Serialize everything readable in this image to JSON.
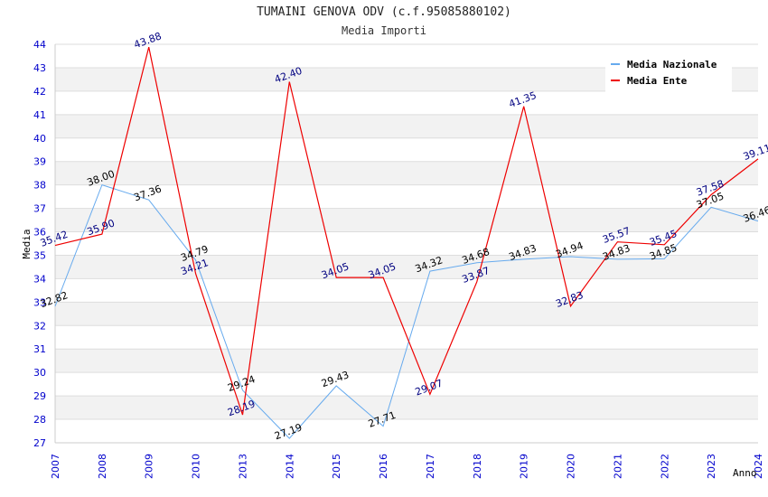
{
  "chart_data": {
    "type": "line",
    "title": "TUMAINI GENOVA ODV (c.f.95085880102)",
    "subtitle": "Media Importi",
    "xlabel": "Anno",
    "ylabel": "Media",
    "ylim": [
      27,
      44
    ],
    "yticks": [
      "27",
      "28",
      "29",
      "30",
      "31",
      "32",
      "33",
      "34",
      "35",
      "36",
      "37",
      "38",
      "39",
      "40",
      "41",
      "42",
      "43",
      "44"
    ],
    "categories": [
      "2007",
      "2008",
      "2009",
      "2010",
      "2013",
      "2014",
      "2015",
      "2016",
      "2017",
      "2018",
      "2019",
      "2020",
      "2021",
      "2022",
      "2023",
      "2024"
    ],
    "series": [
      {
        "name": "Media Nazionale",
        "color": "#66aaee",
        "label_color": "#000000",
        "values": [
          32.82,
          38.0,
          37.36,
          34.79,
          29.24,
          27.19,
          29.43,
          27.71,
          34.32,
          34.68,
          34.83,
          34.94,
          34.83,
          34.85,
          37.05,
          36.46
        ],
        "labels": [
          "32.82",
          "38.00",
          "37.36",
          "34.79",
          "29.24",
          "27.19",
          "29.43",
          "27.71",
          "34.32",
          "34.68",
          "34.83",
          "34.94",
          "34.83",
          "34.85",
          "37.05",
          "36.46"
        ]
      },
      {
        "name": "Media Ente",
        "color": "#ee0000",
        "label_color": "#000080",
        "values": [
          35.42,
          35.9,
          43.88,
          34.21,
          28.19,
          42.4,
          34.05,
          34.05,
          29.07,
          33.87,
          41.35,
          32.83,
          35.57,
          35.45,
          37.58,
          39.11
        ],
        "labels": [
          "35.42",
          "35.90",
          "43.88",
          "34.21",
          "28.19",
          "42.40",
          "34.05",
          "34.05",
          "29.07",
          "33.87",
          "41.35",
          "32.83",
          "35.57",
          "35.45",
          "37.58",
          "39.11"
        ]
      }
    ],
    "legend_position": "top-right",
    "grid": true,
    "band_colors": [
      "#ffffff",
      "#f2f2f2"
    ],
    "grid_color": "#dddddd"
  }
}
